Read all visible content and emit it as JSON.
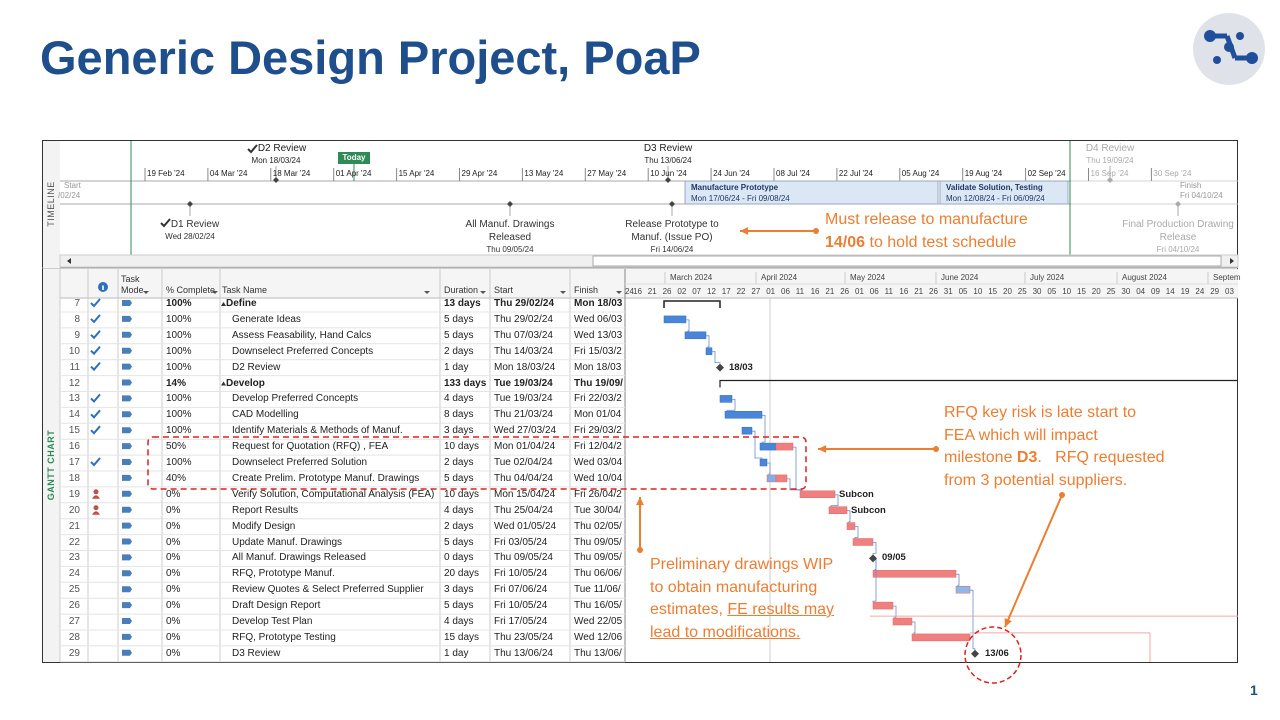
{
  "title": "Generic Design Project, PoaP",
  "page_number": "1",
  "timeline": {
    "label": "TIMELINE",
    "start_label": "Start",
    "start_date": "/02/24",
    "finish_label": "Finish",
    "finish_date": "Fri 04/10/24",
    "today": "Today",
    "dates": [
      "19 Feb '24",
      "04 Mar '24",
      "18 Mar '24",
      "01 Apr '24",
      "15 Apr '24",
      "29 Apr '24",
      "13 May '24",
      "27 May '24",
      "10 Jun '24",
      "24 Jun '24",
      "08 Jul '24",
      "22 Jul '24",
      "05 Aug '24",
      "19 Aug '24",
      "02 Sep '24",
      "16 Sep '24",
      "30 Sep '24"
    ],
    "bars": [
      {
        "name": "Manufacture Prototype",
        "dates": "Mon 17/06/24 - Fri 09/08/24"
      },
      {
        "name": "Validate Solution, Testing",
        "dates": "Mon 12/08/24 - Fri 06/09/24"
      }
    ],
    "milestones_above": [
      {
        "name": "D2 Review",
        "date": "Mon 18/03/24"
      },
      {
        "name": "D3 Review",
        "date": "Thu 13/06/24"
      },
      {
        "name": "D4 Review",
        "date": "Thu 19/09/24"
      }
    ],
    "milestones_below": [
      {
        "name": "D1 Review",
        "date": "Wed 28/02/24"
      },
      {
        "name": "All Manuf. Drawings Released",
        "date": "Thu 09/05/24"
      },
      {
        "name": "Release Prototype to Manuf. (Issue PO)",
        "date": "Fri 14/06/24"
      },
      {
        "name": "Final Production Drawing Release",
        "date": "Fri 04/10/24"
      }
    ]
  },
  "gantt": {
    "label": "GANTT CHART",
    "headers": [
      "Task Mode",
      "% Complete",
      "Task Name",
      "Duration",
      "Start",
      "Finish"
    ],
    "months": [
      "March 2024",
      "April 2024",
      "May 2024",
      "June 2024",
      "July 2024",
      "August 2024",
      "Septem"
    ],
    "days": [
      "24",
      "16",
      "21",
      "26",
      "02",
      "07",
      "12",
      "17",
      "22",
      "27",
      "01",
      "06",
      "11",
      "16",
      "21",
      "26",
      "01",
      "06",
      "11",
      "16",
      "21",
      "26",
      "31",
      "05",
      "10",
      "15",
      "20",
      "25",
      "30",
      "05",
      "10",
      "15",
      "20",
      "25",
      "30",
      "04",
      "09",
      "14",
      "19",
      "24",
      "29",
      "03"
    ],
    "rows": [
      {
        "id": "7",
        "complete": "100%",
        "name": "Define",
        "duration": "13 days",
        "start": "Thu 29/02/24",
        "finish": "Mon 18/03"
      },
      {
        "id": "8",
        "complete": "100%",
        "name": "Generate Ideas",
        "duration": "5 days",
        "start": "Thu 29/02/24",
        "finish": "Wed 06/03"
      },
      {
        "id": "9",
        "complete": "100%",
        "name": "Assess Feasability, Hand Calcs",
        "duration": "5 days",
        "start": "Thu 07/03/24",
        "finish": "Wed 13/03"
      },
      {
        "id": "10",
        "complete": "100%",
        "name": "Downselect Preferred Concepts",
        "duration": "2 days",
        "start": "Thu 14/03/24",
        "finish": "Fri 15/03/2"
      },
      {
        "id": "11",
        "complete": "100%",
        "name": "D2 Review",
        "duration": "1 day",
        "start": "Mon 18/03/24",
        "finish": "Mon 18/03"
      },
      {
        "id": "12",
        "complete": "14%",
        "name": "Develop",
        "duration": "133 days",
        "start": "Tue 19/03/24",
        "finish": "Thu 19/09/"
      },
      {
        "id": "13",
        "complete": "100%",
        "name": "Develop Preferred Concepts",
        "duration": "4 days",
        "start": "Tue 19/03/24",
        "finish": "Fri 22/03/2"
      },
      {
        "id": "14",
        "complete": "100%",
        "name": "CAD Modelling",
        "duration": "8 days",
        "start": "Thu 21/03/24",
        "finish": "Mon 01/04"
      },
      {
        "id": "15",
        "complete": "100%",
        "name": "Identify Materials & Methods of Manuf.",
        "duration": "3 days",
        "start": "Wed 27/03/24",
        "finish": "Fri 29/03/2"
      },
      {
        "id": "16",
        "complete": "50%",
        "name": "Request for Quotation (RFQ) , FEA",
        "duration": "10 days",
        "start": "Mon 01/04/24",
        "finish": "Fri 12/04/2"
      },
      {
        "id": "17",
        "complete": "100%",
        "name": "Downselect Preferred Solution",
        "duration": "2 days",
        "start": "Tue 02/04/24",
        "finish": "Wed 03/04"
      },
      {
        "id": "18",
        "complete": "40%",
        "name": "Create Prelim. Prototype Manuf. Drawings",
        "duration": "5 days",
        "start": "Thu 04/04/24",
        "finish": "Wed 10/04"
      },
      {
        "id": "19",
        "complete": "0%",
        "name": "Verify Solution, Computational Analysis (FEA)",
        "duration": "10 days",
        "start": "Mon 15/04/24",
        "finish": "Fri 26/04/2"
      },
      {
        "id": "20",
        "complete": "0%",
        "name": "Report Results",
        "duration": "4 days",
        "start": "Thu 25/04/24",
        "finish": "Tue 30/04/"
      },
      {
        "id": "21",
        "complete": "0%",
        "name": "Modify Design",
        "duration": "2 days",
        "start": "Wed 01/05/24",
        "finish": "Thu 02/05/"
      },
      {
        "id": "22",
        "complete": "0%",
        "name": "Update Manuf. Drawings",
        "duration": "5 days",
        "start": "Fri 03/05/24",
        "finish": "Thu 09/05/"
      },
      {
        "id": "23",
        "complete": "0%",
        "name": "All Manuf. Drawings Released",
        "duration": "0 days",
        "start": "Thu 09/05/24",
        "finish": "Thu 09/05/"
      },
      {
        "id": "24",
        "complete": "0%",
        "name": "RFQ, Prototype Manuf.",
        "duration": "20 days",
        "start": "Fri 10/05/24",
        "finish": "Thu 06/06/"
      },
      {
        "id": "25",
        "complete": "0%",
        "name": "Review Quotes & Select Preferred Supplier",
        "duration": "3 days",
        "start": "Fri 07/06/24",
        "finish": "Tue 11/06/"
      },
      {
        "id": "26",
        "complete": "0%",
        "name": "Draft Design Report",
        "duration": "5 days",
        "start": "Fri 10/05/24",
        "finish": "Thu 16/05/"
      },
      {
        "id": "27",
        "complete": "0%",
        "name": "Develop Test Plan",
        "duration": "4 days",
        "start": "Fri 17/05/24",
        "finish": "Wed 22/05"
      },
      {
        "id": "28",
        "complete": "0%",
        "name": "RFQ, Prototype Testing",
        "duration": "15 days",
        "start": "Thu 23/05/24",
        "finish": "Wed 12/06"
      },
      {
        "id": "29",
        "complete": "0%",
        "name": "D3 Review",
        "duration": "1 day",
        "start": "Thu 13/06/24",
        "finish": "Thu 13/06/"
      }
    ],
    "bar_labels": [
      "18/03",
      "Subcon",
      "Subcon",
      "09/05",
      "13/06"
    ]
  },
  "annotations": [
    {
      "lines": [
        [
          {
            "text": "Must release to manufacture"
          }
        ],
        [
          {
            "text": "14/06",
            "bold": true
          },
          {
            "text": " to hold test schedule"
          }
        ]
      ]
    },
    {
      "lines": [
        [
          {
            "text": "RFQ key risk is late start to"
          }
        ],
        [
          {
            "text": "FEA which will impact"
          }
        ],
        [
          {
            "text": "milestone "
          },
          {
            "text": "D3",
            "bold": true
          },
          {
            "text": ".   RFQ requested"
          }
        ],
        [
          {
            "text": "from 3 potential suppliers."
          }
        ]
      ]
    },
    {
      "lines": [
        [
          {
            "text": "Preliminary drawings WIP"
          }
        ],
        [
          {
            "text": "to obtain manufacturing"
          }
        ],
        [
          {
            "text": "estimates, "
          },
          {
            "text": "FE results may",
            "underline": true
          }
        ],
        [
          {
            "text": "lead to modifications.",
            "underline": true
          }
        ]
      ]
    }
  ]
}
